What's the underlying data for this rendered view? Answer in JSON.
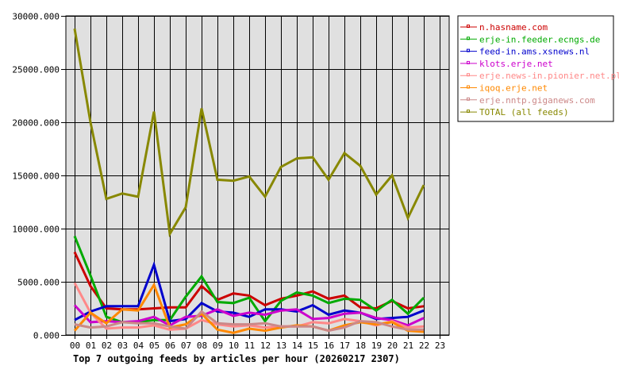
{
  "chart_data": {
    "type": "line",
    "title": "Top 7 outgoing feeds by articles per hour (20260217 2307)",
    "xlabel": "",
    "ylabel": "",
    "ylim": [
      0,
      30000
    ],
    "grid": true,
    "legend_position": "right",
    "y_ticks": [
      "0.000",
      "5000.000",
      "10000.000",
      "15000.000",
      "20000.000",
      "25000.000",
      "30000.000"
    ],
    "y_tick_values": [
      0,
      5000,
      10000,
      15000,
      20000,
      25000,
      30000
    ],
    "categories": [
      "00",
      "01",
      "02",
      "03",
      "04",
      "05",
      "06",
      "07",
      "08",
      "09",
      "10",
      "11",
      "12",
      "13",
      "14",
      "15",
      "16",
      "17",
      "18",
      "19",
      "20",
      "21",
      "22",
      "23"
    ],
    "series": [
      {
        "name": "n.hasname.com",
        "color": "#cc0000",
        "values": [
          7800,
          4600,
          2500,
          2400,
          2400,
          2500,
          2600,
          2600,
          4600,
          3300,
          3900,
          3700,
          2800,
          3400,
          3700,
          4100,
          3400,
          3700,
          2600,
          2500,
          3200,
          2500,
          2700
        ]
      },
      {
        "name": "erje-in.feeder.ecngs.de",
        "color": "#00aa00",
        "values": [
          9300,
          5600,
          1700,
          1200,
          1200,
          1400,
          1400,
          3600,
          5500,
          3100,
          3000,
          3500,
          1300,
          3200,
          4000,
          3700,
          3000,
          3400,
          3300,
          2300,
          3300,
          2000,
          3500
        ]
      },
      {
        "name": "feed-in.ams.xsnews.nl",
        "color": "#0000cc",
        "values": [
          1400,
          2200,
          2700,
          2700,
          2700,
          6600,
          1300,
          1500,
          3000,
          2200,
          2100,
          1700,
          2400,
          2400,
          2200,
          2800,
          1900,
          2300,
          2100,
          1500,
          1600,
          1700,
          2300
        ]
      },
      {
        "name": "klots.erje.net",
        "color": "#cc00cc",
        "values": [
          2800,
          1200,
          1300,
          1200,
          1300,
          1700,
          900,
          1700,
          1800,
          2400,
          1800,
          2100,
          1900,
          2300,
          2400,
          1500,
          1600,
          2000,
          2100,
          1600,
          1400,
          900,
          1600
        ]
      },
      {
        "name": "erje.news-in.pionier.net.pl",
        "color": "#ff8888",
        "values": [
          4900,
          2100,
          600,
          700,
          700,
          900,
          500,
          600,
          1400,
          1000,
          800,
          900,
          700,
          800,
          800,
          1200,
          1100,
          1500,
          1300,
          900,
          1300,
          700,
          800
        ]
      },
      {
        "name": "iqoq.erje.net",
        "color": "#ff8800",
        "values": [
          400,
          2100,
          1100,
          2400,
          2300,
          4700,
          700,
          1000,
          2000,
          500,
          200,
          600,
          400,
          700,
          900,
          800,
          400,
          900,
          1200,
          1000,
          1200,
          400,
          300
        ]
      },
      {
        "name": "erje.nntp.giganews.com",
        "color": "#cc8888",
        "values": [
          1000,
          700,
          800,
          1200,
          1100,
          1100,
          800,
          600,
          2200,
          1100,
          1000,
          1000,
          1100,
          800,
          800,
          800,
          400,
          700,
          1300,
          1200,
          800,
          500,
          500
        ]
      },
      {
        "name": "TOTAL (all feeds)",
        "color": "#888800",
        "values": [
          28800,
          20000,
          12800,
          13300,
          13000,
          21000,
          9500,
          12000,
          21300,
          14600,
          14500,
          14900,
          13000,
          15800,
          16600,
          16700,
          14600,
          17100,
          15900,
          13200,
          15000,
          11000,
          14100
        ]
      }
    ]
  },
  "legend": {
    "items": [
      {
        "label": "n.hasname.com",
        "color": "#cc0000"
      },
      {
        "label": "erje-in.feeder.ecngs.de",
        "color": "#00aa00"
      },
      {
        "label": "feed-in.ams.xsnews.nl",
        "color": "#0000cc"
      },
      {
        "label": "klots.erje.net",
        "color": "#cc00cc"
      },
      {
        "label": "erje.news-in.pionier.net.pl",
        "color": "#ff8888"
      },
      {
        "label": "iqoq.erje.net",
        "color": "#ff8800"
      },
      {
        "label": "erje.nntp.giganews.com",
        "color": "#cc8888"
      },
      {
        "label": "TOTAL (all feeds)",
        "color": "#888800"
      }
    ]
  },
  "colors": {
    "plot_background": "#e0e0e0",
    "grid": "#000000",
    "page_background": "#ffffff"
  }
}
